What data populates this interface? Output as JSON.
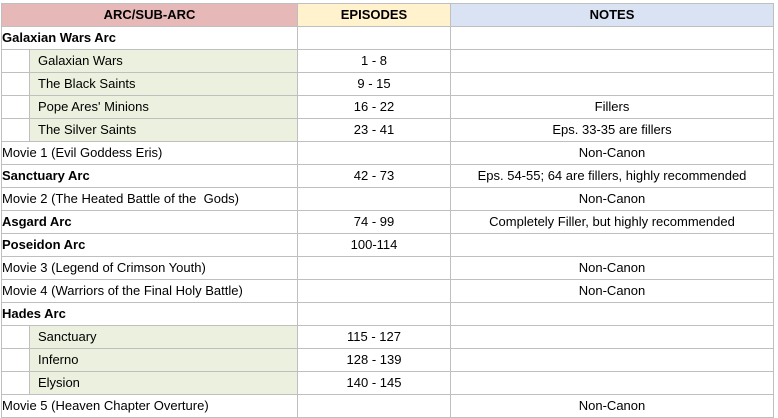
{
  "headers": {
    "arc": "ARC/SUB-ARC",
    "episodes": "EPISODES",
    "notes": "NOTES"
  },
  "colors": {
    "header_arc": "#e6b8b7",
    "header_episodes": "#fff2cc",
    "header_notes": "#dae3f3",
    "sub_arc_fill": "#ebf1de",
    "grid": "#bfbfbf"
  },
  "rows": [
    {
      "arc": "Galaxian Wars Arc",
      "episodes": "",
      "notes": ""
    },
    {
      "arc": "Galaxian Wars",
      "episodes": "1 - 8",
      "notes": ""
    },
    {
      "arc": "The Black Saints",
      "episodes": "9 - 15",
      "notes": ""
    },
    {
      "arc": "Pope Ares' Minions",
      "episodes": "16 - 22",
      "notes": "Fillers"
    },
    {
      "arc": "The Silver Saints",
      "episodes": "23 - 41",
      "notes": "Eps. 33-35 are fillers"
    },
    {
      "arc": "Movie 1 (Evil Goddess Eris)",
      "episodes": "",
      "notes": "Non-Canon"
    },
    {
      "arc": "Sanctuary Arc",
      "episodes": "42 - 73",
      "notes": "Eps. 54-55; 64 are fillers, highly recommended"
    },
    {
      "arc": "Movie 2 (The Heated Battle of the  Gods)",
      "episodes": "",
      "notes": "Non-Canon"
    },
    {
      "arc": "Asgard Arc",
      "episodes": "74 - 99",
      "notes": "Completely Filler, but highly recommended"
    },
    {
      "arc": "Poseidon Arc",
      "episodes": "100-114",
      "notes": ""
    },
    {
      "arc": "Movie 3 (Legend of Crimson Youth)",
      "episodes": "",
      "notes": "Non-Canon"
    },
    {
      "arc": "Movie 4 (Warriors of the Final Holy Battle)",
      "episodes": "",
      "notes": "Non-Canon"
    },
    {
      "arc": "Hades Arc",
      "episodes": "",
      "notes": ""
    },
    {
      "arc": "Sanctuary",
      "episodes": "115 - 127",
      "notes": ""
    },
    {
      "arc": "Inferno",
      "episodes": "128 - 139",
      "notes": ""
    },
    {
      "arc": "Elysion",
      "episodes": "140 - 145",
      "notes": ""
    },
    {
      "arc": "Movie 5 (Heaven Chapter Overture)",
      "episodes": "",
      "notes": "Non-Canon"
    }
  ]
}
